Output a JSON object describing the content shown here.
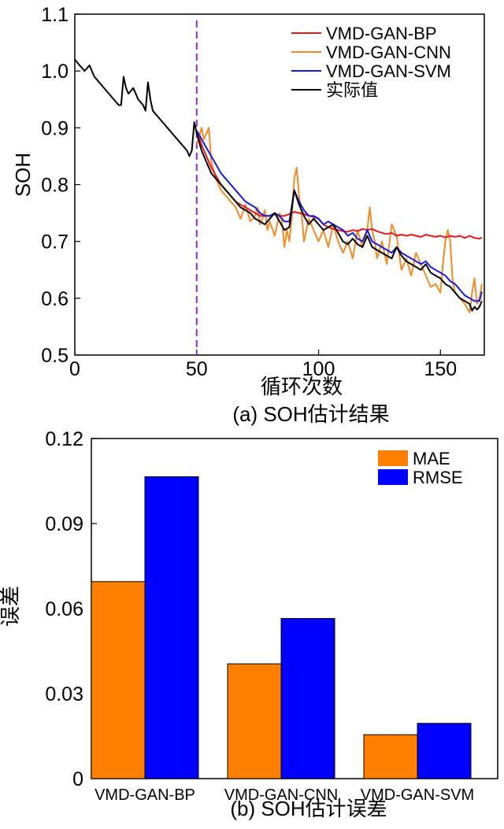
{
  "colors": {
    "bp": "#e31a1c",
    "cnn": "#f28c28",
    "svm": "#1a1ad6",
    "actual": "#000000",
    "divider": "#8a2be2",
    "mae": "#ff8000",
    "rmse": "#0000ff"
  },
  "chart_data": [
    {
      "type": "line",
      "title": "(a) SOH估计结果",
      "xlabel": "循环次数",
      "ylabel": "SOH",
      "xlim": [
        0,
        168
      ],
      "ylim": [
        0.5,
        1.1
      ],
      "xticks": [
        "0",
        "50",
        "100",
        "150"
      ],
      "yticks": [
        "0.5",
        "0.6",
        "0.7",
        "0.8",
        "0.9",
        "1.0",
        "1.1"
      ],
      "divider_x": 50,
      "legend": [
        "VMD-GAN-BP",
        "VMD-GAN-CNN",
        "VMD-GAN-SVM",
        "实际值"
      ],
      "series": [
        {
          "name": "实际值",
          "key": "actual",
          "x": [
            0,
            2,
            4,
            6,
            8,
            10,
            12,
            14,
            16,
            18,
            19,
            20,
            21,
            22,
            24,
            26,
            28,
            29,
            30,
            31,
            32,
            34,
            36,
            38,
            40,
            42,
            44,
            46,
            47,
            48,
            49,
            50,
            52,
            54,
            56,
            58,
            60,
            62,
            64,
            66,
            68,
            70,
            72,
            74,
            76,
            78,
            80,
            82,
            84,
            86,
            88,
            90,
            92,
            94,
            96,
            98,
            100,
            102,
            104,
            106,
            108,
            110,
            112,
            114,
            116,
            118,
            120,
            122,
            124,
            126,
            128,
            130,
            132,
            134,
            136,
            138,
            140,
            142,
            144,
            146,
            148,
            150,
            152,
            154,
            156,
            158,
            160,
            162,
            163,
            164,
            165,
            166,
            167
          ],
          "y": [
            1.02,
            1.01,
            1.0,
            1.01,
            0.99,
            0.98,
            0.97,
            0.96,
            0.95,
            0.94,
            0.94,
            0.99,
            0.97,
            0.96,
            0.97,
            0.95,
            0.94,
            0.93,
            0.98,
            0.95,
            0.93,
            0.92,
            0.91,
            0.9,
            0.89,
            0.88,
            0.87,
            0.86,
            0.85,
            0.86,
            0.91,
            0.89,
            0.86,
            0.84,
            0.82,
            0.81,
            0.8,
            0.79,
            0.78,
            0.77,
            0.76,
            0.755,
            0.75,
            0.74,
            0.735,
            0.73,
            0.74,
            0.75,
            0.735,
            0.72,
            0.725,
            0.79,
            0.765,
            0.745,
            0.73,
            0.74,
            0.73,
            0.72,
            0.725,
            0.73,
            0.715,
            0.7,
            0.695,
            0.705,
            0.695,
            0.69,
            0.71,
            0.69,
            0.685,
            0.68,
            0.675,
            0.67,
            0.69,
            0.675,
            0.665,
            0.66,
            0.655,
            0.65,
            0.66,
            0.645,
            0.64,
            0.635,
            0.625,
            0.62,
            0.61,
            0.6,
            0.595,
            0.59,
            0.578,
            0.585,
            0.58,
            0.585,
            0.595
          ]
        },
        {
          "name": "VMD-GAN-BP",
          "key": "bp",
          "x": [
            50,
            52,
            54,
            56,
            58,
            60,
            62,
            64,
            66,
            68,
            70,
            72,
            74,
            76,
            78,
            80,
            82,
            84,
            86,
            88,
            90,
            92,
            94,
            96,
            98,
            100,
            102,
            104,
            106,
            108,
            110,
            112,
            114,
            116,
            118,
            120,
            122,
            124,
            126,
            128,
            130,
            132,
            134,
            136,
            138,
            140,
            142,
            144,
            146,
            148,
            150,
            152,
            154,
            156,
            158,
            160,
            162,
            164,
            166,
            167
          ],
          "y": [
            0.895,
            0.87,
            0.85,
            0.83,
            0.815,
            0.8,
            0.79,
            0.78,
            0.77,
            0.765,
            0.76,
            0.755,
            0.75,
            0.745,
            0.745,
            0.745,
            0.748,
            0.745,
            0.745,
            0.748,
            0.752,
            0.75,
            0.748,
            0.745,
            0.743,
            0.74,
            0.73,
            0.725,
            0.722,
            0.72,
            0.718,
            0.717,
            0.72,
            0.718,
            0.722,
            0.72,
            0.722,
            0.718,
            0.715,
            0.713,
            0.715,
            0.71,
            0.712,
            0.71,
            0.712,
            0.71,
            0.708,
            0.712,
            0.71,
            0.708,
            0.71,
            0.707,
            0.71,
            0.708,
            0.71,
            0.706,
            0.71,
            0.706,
            0.705,
            0.707
          ]
        },
        {
          "name": "VMD-GAN-CNN",
          "key": "cnn",
          "x": [
            50,
            52,
            53,
            54,
            55,
            56,
            58,
            60,
            62,
            64,
            66,
            68,
            70,
            72,
            74,
            75,
            76,
            77,
            78,
            79,
            80,
            82,
            84,
            85,
            86,
            87,
            88,
            89,
            90,
            91,
            92,
            93,
            94,
            96,
            98,
            100,
            102,
            104,
            106,
            108,
            110,
            112,
            114,
            116,
            118,
            120,
            121,
            122,
            123,
            124,
            126,
            128,
            130,
            132,
            134,
            136,
            138,
            140,
            142,
            144,
            146,
            148,
            150,
            151,
            152,
            153,
            154,
            155,
            156,
            158,
            160,
            162,
            163,
            164,
            165,
            166,
            167
          ],
          "y": [
            0.87,
            0.9,
            0.88,
            0.89,
            0.9,
            0.84,
            0.81,
            0.79,
            0.78,
            0.77,
            0.76,
            0.74,
            0.765,
            0.735,
            0.745,
            0.76,
            0.73,
            0.74,
            0.755,
            0.72,
            0.735,
            0.71,
            0.75,
            0.735,
            0.69,
            0.72,
            0.7,
            0.74,
            0.81,
            0.83,
            0.78,
            0.75,
            0.7,
            0.74,
            0.72,
            0.7,
            0.72,
            0.69,
            0.73,
            0.7,
            0.68,
            0.7,
            0.67,
            0.72,
            0.69,
            0.72,
            0.76,
            0.72,
            0.7,
            0.67,
            0.7,
            0.66,
            0.73,
            0.71,
            0.65,
            0.67,
            0.64,
            0.68,
            0.66,
            0.64,
            0.62,
            0.625,
            0.61,
            0.66,
            0.7,
            0.72,
            0.7,
            0.63,
            0.61,
            0.6,
            0.59,
            0.575,
            0.61,
            0.635,
            0.59,
            0.6,
            0.625
          ]
        },
        {
          "name": "VMD-GAN-SVM",
          "key": "svm",
          "x": [
            50,
            52,
            54,
            56,
            58,
            60,
            62,
            64,
            66,
            68,
            70,
            72,
            74,
            76,
            78,
            80,
            82,
            84,
            86,
            88,
            90,
            92,
            94,
            96,
            98,
            100,
            102,
            104,
            106,
            108,
            110,
            112,
            114,
            116,
            118,
            120,
            122,
            124,
            126,
            128,
            130,
            132,
            134,
            136,
            138,
            140,
            142,
            144,
            146,
            148,
            150,
            152,
            154,
            156,
            158,
            160,
            162,
            164,
            166,
            167
          ],
          "y": [
            0.895,
            0.88,
            0.865,
            0.85,
            0.835,
            0.82,
            0.81,
            0.8,
            0.79,
            0.78,
            0.77,
            0.765,
            0.76,
            0.75,
            0.745,
            0.745,
            0.75,
            0.745,
            0.735,
            0.735,
            0.79,
            0.77,
            0.755,
            0.745,
            0.745,
            0.74,
            0.73,
            0.735,
            0.73,
            0.725,
            0.72,
            0.71,
            0.715,
            0.705,
            0.7,
            0.72,
            0.7,
            0.695,
            0.69,
            0.685,
            0.68,
            0.69,
            0.68,
            0.675,
            0.67,
            0.665,
            0.66,
            0.665,
            0.655,
            0.65,
            0.645,
            0.64,
            0.63,
            0.625,
            0.615,
            0.605,
            0.6,
            0.595,
            0.595,
            0.612
          ]
        }
      ]
    },
    {
      "type": "bar",
      "title": "(b) SOH估计误差",
      "xlabel": "",
      "ylabel": "误差",
      "ylim": [
        0,
        0.12
      ],
      "yticks": [
        "0",
        "0.03",
        "0.06",
        "0.09",
        "0.12"
      ],
      "categories": [
        "VMD-GAN-BP",
        "VMD-GAN-CNN",
        "VMD-GAN-SVM"
      ],
      "series": [
        {
          "name": "MAE",
          "key": "mae",
          "values": [
            0.0695,
            0.0405,
            0.0155
          ]
        },
        {
          "name": "RMSE",
          "key": "rmse",
          "values": [
            0.1065,
            0.0565,
            0.0195
          ]
        }
      ]
    }
  ]
}
